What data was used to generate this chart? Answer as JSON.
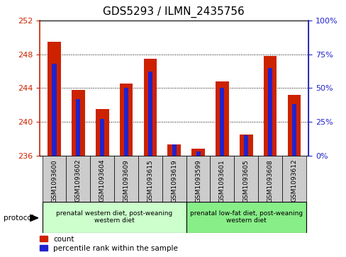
{
  "title": "GDS5293 / ILMN_2435756",
  "samples": [
    "GSM1093600",
    "GSM1093602",
    "GSM1093604",
    "GSM1093609",
    "GSM1093615",
    "GSM1093619",
    "GSM1093599",
    "GSM1093601",
    "GSM1093605",
    "GSM1093608",
    "GSM1093612"
  ],
  "count_values": [
    249.5,
    243.8,
    241.5,
    244.5,
    247.5,
    237.3,
    236.8,
    244.8,
    238.5,
    247.8,
    243.2
  ],
  "percentile_values": [
    68,
    42,
    27,
    50,
    62,
    8,
    3,
    50,
    15,
    65,
    38
  ],
  "baseline": 236,
  "ylim_left": [
    236,
    252
  ],
  "ylim_right": [
    0,
    100
  ],
  "yticks_left": [
    236,
    240,
    244,
    248,
    252
  ],
  "yticks_right": [
    0,
    25,
    50,
    75,
    100
  ],
  "group1_label": "prenatal western diet, post-weaning\nwestern diet",
  "group2_label": "prenatal low-fat diet, post-weaning\nwestern diet",
  "group1_count": 6,
  "group2_count": 5,
  "protocol_label": "protocol",
  "legend_count": "count",
  "legend_percentile": "percentile rank within the sample",
  "bar_color_red": "#CC2200",
  "bar_color_blue": "#2222CC",
  "group1_color": "#ccffcc",
  "group2_color": "#88ee88",
  "sample_bg_color": "#cccccc",
  "bar_width": 0.55,
  "blue_bar_width": 0.18,
  "title_fontsize": 11,
  "tick_fontsize": 6.5,
  "label_fontsize": 8
}
